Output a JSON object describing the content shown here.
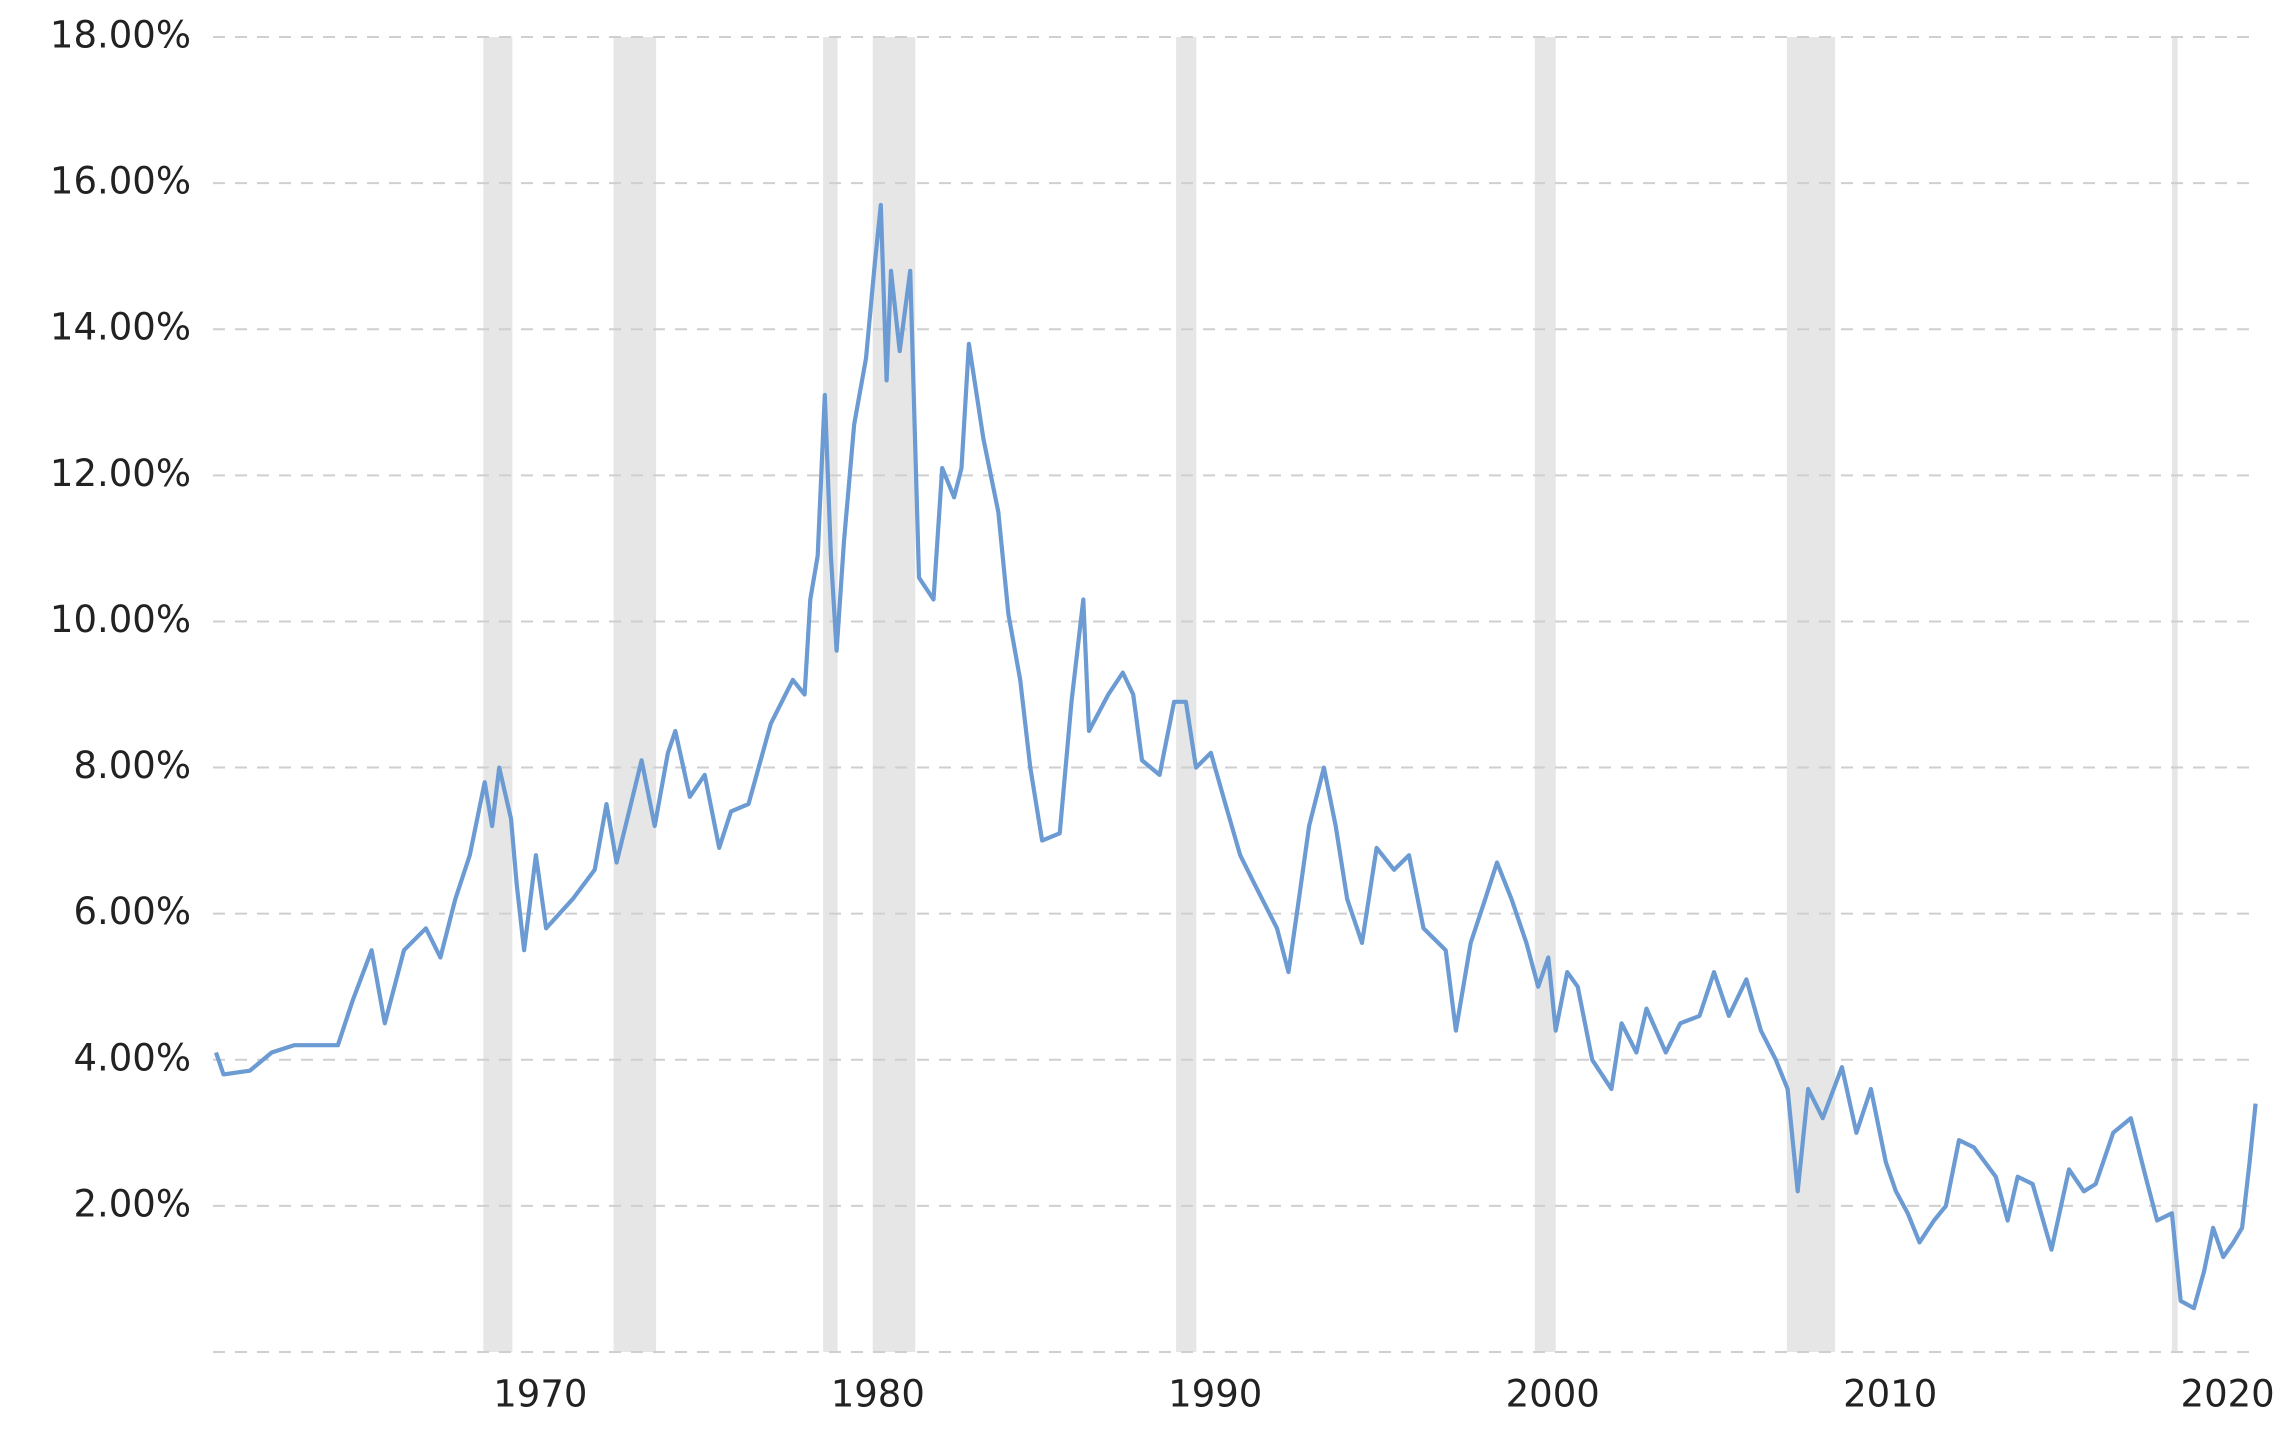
{
  "chart_data": {
    "type": "line",
    "x": [
      1960.39,
      1960.61,
      1961.39,
      1962.04,
      1962.7,
      1964.0,
      1964.43,
      1965.0,
      1965.39,
      1965.96,
      1966.61,
      1967.04,
      1967.48,
      1967.91,
      1968.35,
      1968.57,
      1968.78,
      1969.13,
      1969.3,
      1969.52,
      1969.87,
      1970.17,
      1970.96,
      1971.61,
      1971.96,
      1972.26,
      1973.0,
      1973.39,
      1973.78,
      1974.0,
      1974.43,
      1974.87,
      1975.3,
      1975.65,
      1976.17,
      1976.83,
      1977.48,
      1977.83,
      1978.0,
      1978.22,
      1978.43,
      1978.61,
      1978.78,
      1979.0,
      1979.3,
      1979.65,
      1979.91,
      1980.09,
      1980.26,
      1980.39,
      1980.65,
      1980.96,
      1981.22,
      1981.65,
      1981.91,
      1982.26,
      1982.48,
      1982.7,
      1983.13,
      1983.57,
      1983.87,
      1984.22,
      1984.52,
      1984.87,
      1985.39,
      1985.74,
      1986.09,
      1986.26,
      1986.83,
      1987.26,
      1987.57,
      1987.83,
      1988.35,
      1988.78,
      1989.13,
      1989.43,
      1989.87,
      1990.3,
      1990.74,
      1991.17,
      1991.83,
      1992.17,
      1992.48,
      1992.78,
      1993.22,
      1993.57,
      1993.91,
      1994.35,
      1994.78,
      1995.3,
      1995.74,
      1996.17,
      1996.83,
      1997.13,
      1997.57,
      1998.0,
      1998.35,
      1998.78,
      1999.22,
      1999.57,
      1999.87,
      2000.09,
      2000.43,
      2000.74,
      2001.17,
      2001.74,
      2002.04,
      2002.48,
      2002.78,
      2003.35,
      2003.78,
      2004.35,
      2004.78,
      2005.22,
      2005.74,
      2006.17,
      2006.61,
      2006.96,
      2007.26,
      2007.57,
      2008.0,
      2008.57,
      2009.0,
      2009.43,
      2009.87,
      2010.17,
      2010.52,
      2010.87,
      2011.3,
      2011.65,
      2012.04,
      2012.48,
      2013.13,
      2013.48,
      2013.78,
      2014.22,
      2014.78,
      2015.3,
      2015.74,
      2016.09,
      2016.61,
      2017.13,
      2017.57,
      2017.91,
      2018.35,
      2018.61,
      2019.0,
      2019.3,
      2019.57,
      2019.87,
      2020.17,
      2020.43,
      2020.65,
      2020.83
    ],
    "values": [
      4.1,
      3.8,
      3.85,
      4.1,
      4.2,
      4.2,
      4.8,
      5.5,
      4.5,
      5.5,
      5.8,
      5.4,
      6.2,
      6.8,
      7.8,
      7.2,
      8.0,
      7.3,
      6.4,
      5.5,
      6.8,
      5.8,
      6.2,
      6.6,
      7.5,
      6.7,
      8.1,
      7.2,
      8.2,
      8.5,
      7.6,
      7.9,
      6.9,
      7.4,
      7.5,
      8.6,
      9.2,
      9.0,
      10.3,
      10.9,
      13.1,
      10.9,
      9.6,
      11.1,
      12.7,
      13.6,
      14.9,
      15.7,
      13.3,
      14.8,
      13.7,
      14.8,
      10.6,
      10.3,
      12.1,
      11.7,
      12.1,
      13.8,
      12.5,
      11.5,
      10.1,
      9.2,
      8.0,
      7.0,
      7.1,
      8.9,
      10.3,
      8.5,
      9.0,
      9.3,
      9.0,
      8.1,
      7.9,
      8.9,
      8.9,
      8.0,
      8.2,
      7.5,
      6.8,
      6.4,
      5.8,
      5.2,
      6.2,
      7.2,
      8.0,
      7.2,
      6.2,
      5.6,
      6.9,
      6.6,
      6.8,
      5.8,
      5.5,
      4.4,
      5.6,
      6.2,
      6.7,
      6.2,
      5.6,
      5.0,
      5.4,
      4.4,
      5.2,
      5.0,
      4.0,
      3.6,
      4.5,
      4.1,
      4.7,
      4.1,
      4.5,
      4.6,
      5.2,
      4.6,
      5.1,
      4.4,
      4.0,
      3.6,
      2.2,
      3.6,
      3.2,
      3.9,
      3.0,
      3.6,
      2.6,
      2.2,
      1.9,
      1.5,
      1.8,
      2.0,
      2.9,
      2.8,
      2.4,
      1.8,
      2.4,
      2.3,
      1.4,
      2.5,
      2.2,
      2.3,
      3.0,
      3.2,
      2.4,
      1.8,
      1.9,
      0.7,
      0.6,
      1.1,
      1.7,
      1.3,
      1.5,
      1.7,
      2.6,
      3.4
    ],
    "color": "#6b9bd2",
    "shaded_ranges": [
      [
        1968.31,
        1969.17
      ],
      [
        1972.17,
        1973.43
      ],
      [
        1978.38,
        1978.81
      ],
      [
        1979.85,
        1981.11
      ],
      [
        1988.84,
        1989.44
      ],
      [
        1999.47,
        2000.09
      ],
      [
        2006.94,
        2008.37
      ],
      [
        2018.35,
        2018.52
      ]
    ],
    "shade_color": "#e6e6e6",
    "xlim": [
      1960.3,
      2020.9
    ],
    "xticks": [
      1970,
      1980,
      1990,
      2000,
      2010,
      2020
    ],
    "ylim": [
      0,
      18
    ],
    "yticks": [
      {
        "value": 2,
        "label": "2.00%"
      },
      {
        "value": 4,
        "label": "4.00%"
      },
      {
        "value": 6,
        "label": "6.00%"
      },
      {
        "value": 8,
        "label": "8.00%"
      },
      {
        "value": 10,
        "label": "10.00%"
      },
      {
        "value": 12,
        "label": "12.00%"
      },
      {
        "value": 14,
        "label": "14.00%"
      },
      {
        "value": 16,
        "label": "16.00%"
      },
      {
        "value": 18,
        "label": "18.00%"
      }
    ],
    "grid": true
  }
}
